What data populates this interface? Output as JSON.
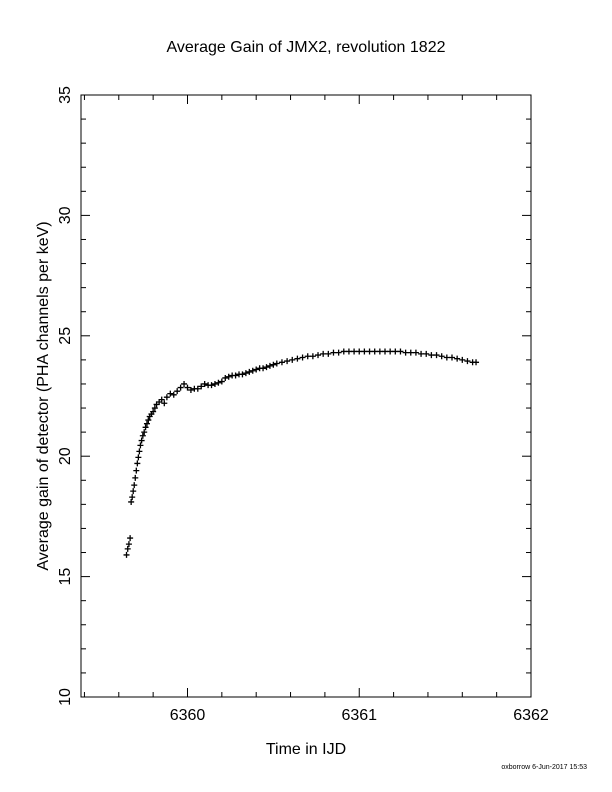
{
  "chart_data": {
    "type": "scatter",
    "title": "Average Gain of JMX2, revolution 1822",
    "xlabel": "Time in IJD",
    "ylabel": "Average gain of detector (PHA channels per keV)",
    "xlim": [
      6359.38,
      6362
    ],
    "ylim": [
      10,
      35
    ],
    "xticks": [
      6360,
      6361,
      6362
    ],
    "yticks": [
      10,
      15,
      20,
      25,
      30,
      35
    ],
    "grid": false,
    "marker": "plus",
    "series": [
      {
        "x": [
          6359.645,
          6359.652,
          6359.659,
          6359.666,
          6359.672,
          6359.678,
          6359.684,
          6359.69,
          6359.696,
          6359.702,
          6359.708,
          6359.714,
          6359.72,
          6359.726,
          6359.733,
          6359.74,
          6359.748,
          6359.756,
          6359.764,
          6359.772,
          6359.78,
          6359.79,
          6359.8,
          6359.81,
          6359.82,
          6359.835,
          6359.85,
          6359.865,
          6359.88,
          6359.9,
          6359.92,
          6359.94,
          6359.96,
          6359.98,
          6360.0,
          6360.02,
          6360.04,
          6360.06,
          6360.08,
          6360.1,
          6360.12,
          6360.14,
          6360.16,
          6360.18,
          6360.2,
          6360.22,
          6360.24,
          6360.26,
          6360.28,
          6360.3,
          6360.32,
          6360.34,
          6360.36,
          6360.38,
          6360.4,
          6360.42,
          6360.44,
          6360.46,
          6360.48,
          6360.5,
          6360.52,
          6360.55,
          6360.58,
          6360.61,
          6360.64,
          6360.67,
          6360.7,
          6360.73,
          6360.76,
          6360.79,
          6360.82,
          6360.85,
          6360.88,
          6360.91,
          6360.94,
          6360.97,
          6361.0,
          6361.03,
          6361.06,
          6361.09,
          6361.12,
          6361.15,
          6361.18,
          6361.21,
          6361.24,
          6361.27,
          6361.3,
          6361.33,
          6361.36,
          6361.39,
          6361.42,
          6361.45,
          6361.48,
          6361.51,
          6361.54,
          6361.57,
          6361.6,
          6361.63,
          6361.66,
          6361.68
        ],
        "y": [
          15.9,
          16.15,
          16.35,
          16.6,
          18.1,
          18.3,
          18.55,
          18.8,
          19.1,
          19.4,
          19.7,
          19.95,
          20.2,
          20.45,
          20.65,
          20.85,
          21.0,
          21.2,
          21.35,
          21.5,
          21.65,
          21.75,
          21.85,
          22.0,
          22.15,
          22.25,
          22.35,
          22.2,
          22.45,
          22.6,
          22.55,
          22.7,
          22.85,
          23.0,
          22.85,
          22.75,
          22.8,
          22.8,
          22.9,
          23.0,
          22.95,
          22.95,
          23.0,
          23.05,
          23.1,
          23.25,
          23.3,
          23.35,
          23.35,
          23.4,
          23.4,
          23.45,
          23.5,
          23.55,
          23.6,
          23.65,
          23.65,
          23.7,
          23.75,
          23.8,
          23.85,
          23.9,
          23.95,
          24.0,
          24.05,
          24.1,
          24.15,
          24.15,
          24.2,
          24.25,
          24.25,
          24.3,
          24.3,
          24.35,
          24.35,
          24.35,
          24.35,
          24.35,
          24.35,
          24.35,
          24.35,
          24.35,
          24.35,
          24.35,
          24.35,
          24.3,
          24.3,
          24.3,
          24.25,
          24.25,
          24.2,
          24.2,
          24.15,
          24.1,
          24.1,
          24.05,
          24.0,
          23.95,
          23.9,
          23.9
        ]
      }
    ]
  },
  "footer": {
    "credit": "oxborrow  6-Jun-2017 15:53"
  }
}
